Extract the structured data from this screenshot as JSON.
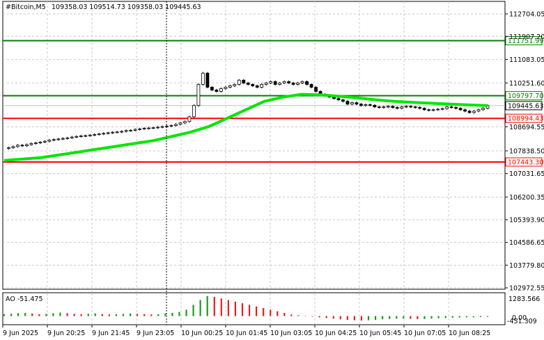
{
  "header": {
    "symbol": "#Bitcoin,M5",
    "ohlc": "109358.03 109514.73 109358.03 109445.63"
  },
  "ao_panel": {
    "label": "AO -51.475",
    "scale_top": "1283.566",
    "scale_zero": "0.00",
    "scale_bottom": "-451.309"
  },
  "price_axis": {
    "ticks": [
      "112704.05",
      "111907.20",
      "111083.05",
      "110251.60",
      "108694.55",
      "107838.50",
      "107031.65",
      "106200.35",
      "105393.90",
      "104586.65",
      "103779.80",
      "102972.55"
    ]
  },
  "levels": [
    {
      "price": "111751.99",
      "color": "#008000"
    },
    {
      "price": "109797.70",
      "color": "#008000"
    },
    {
      "price": "109445.63",
      "color": "#c0c0c0"
    },
    {
      "price": "108994.43",
      "color": "#ff0000"
    },
    {
      "price": "107443.30",
      "color": "#ff0000"
    }
  ],
  "time_axis": {
    "labels": [
      "9 Jun 2025",
      "9 Jun 20:25",
      "9 Jun 21:45",
      "9 Jun 23:05",
      "10 Jun 00:25",
      "10 Jun 01:45",
      "10 Jun 03:05",
      "10 Jun 04:25",
      "10 Jun 05:45",
      "10 Jun 07:05",
      "10 Jun 08:25"
    ]
  },
  "chart_data": {
    "type": "candlestick",
    "title": "#Bitcoin,M5",
    "ylim": [
      102972.55,
      112704.05
    ],
    "close_series_approx": [
      107920,
      107950,
      107990,
      108040,
      108020,
      108060,
      108100,
      108120,
      108150,
      108180,
      108220,
      108240,
      108260,
      108280,
      108300,
      108330,
      108350,
      108370,
      108380,
      108400,
      108420,
      108440,
      108460,
      108480,
      108500,
      108510,
      108530,
      108560,
      108570,
      108600,
      108620,
      108640,
      108650,
      108660,
      108680,
      108700,
      108720,
      108740,
      108780,
      108830,
      108880,
      109050,
      109450,
      110200,
      110600,
      110100,
      110000,
      109950,
      110050,
      110100,
      110150,
      110200,
      110350,
      110250,
      110200,
      110150,
      110100,
      110200,
      110250,
      110300,
      110200,
      110250,
      110300,
      110250,
      110200,
      110250,
      110300,
      110200,
      110100,
      109950,
      109850,
      109800,
      109750,
      109700,
      109650,
      109600,
      109500,
      109550,
      109500,
      109450,
      109480,
      109460,
      109400,
      109380,
      109400,
      109420,
      109380,
      109350,
      109400,
      109420,
      109400,
      109380,
      109350,
      109300,
      109280,
      109300,
      109320,
      109340,
      109400,
      109380,
      109350,
      109300,
      109250,
      109200,
      109250,
      109300,
      109350,
      109445
    ],
    "ma_series_approx": [
      107500,
      107550,
      107600,
      107700,
      107800,
      107900,
      108000,
      108100,
      108200,
      108350,
      108500,
      108700,
      109000,
      109300,
      109600,
      109750,
      109850,
      109830,
      109780,
      109720,
      109650,
      109600,
      109560,
      109530,
      109500,
      109470,
      109445
    ],
    "ao_values_approx": [
      120,
      150,
      180,
      200,
      160,
      120,
      140,
      180,
      220,
      180,
      140,
      120,
      150,
      170,
      130,
      110,
      120,
      140,
      160,
      140,
      120,
      100,
      120,
      160,
      200,
      260,
      400,
      700,
      1000,
      1250,
      1200,
      1100,
      1000,
      900,
      800,
      700,
      600,
      500,
      400,
      300,
      200,
      100,
      50,
      20,
      -30,
      -80,
      -120,
      -160,
      -200,
      -240,
      -260,
      -280,
      -260,
      -240,
      -200,
      -180,
      -160,
      -150,
      -170,
      -190,
      -180,
      -160,
      -140,
      -120,
      -100,
      -90,
      -80,
      -70,
      -60,
      -51
    ]
  }
}
